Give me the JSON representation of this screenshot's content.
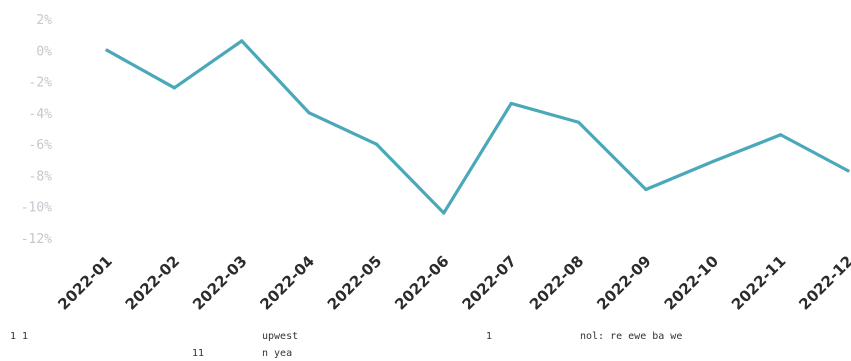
{
  "chart_data": {
    "type": "line",
    "title": "",
    "xlabel": "",
    "ylabel": "",
    "x": [
      "2022-01",
      "2022-02",
      "2022-03",
      "2022-04",
      "2022-05",
      "2022-06",
      "2022-07",
      "2022-08",
      "2022-09",
      "2022-10",
      "2022-11",
      "2022-12"
    ],
    "series": [
      {
        "values": [
          0.0,
          -2.4,
          0.6,
          -4.0,
          -6.0,
          -10.4,
          -3.4,
          -4.6,
          -8.9,
          -7.1,
          -5.4,
          -7.7
        ]
      }
    ],
    "yticks": [
      2,
      0,
      -2,
      -4,
      -6,
      -8,
      -10,
      -12
    ],
    "ytick_labels": [
      "2%",
      "0%",
      "-2%",
      "-4%",
      "-6%",
      "-8%",
      "-10%",
      "-12%"
    ],
    "ylim": [
      -12,
      2
    ],
    "grid": false,
    "line_color": "#4aa8b8",
    "footnotes": [
      {
        "text": "1   1",
        "row": 1,
        "col": "left"
      },
      {
        "text": "11",
        "row": 2,
        "col": "left"
      },
      {
        "text": "upwest",
        "row": 1,
        "col": "mid"
      },
      {
        "text": "n yea",
        "row": 2,
        "col": "mid"
      },
      {
        "text": "1",
        "row": 1,
        "col": "center"
      },
      {
        "text": "nol:   re  ewe   ba  we",
        "row": 1,
        "col": "right"
      }
    ]
  }
}
